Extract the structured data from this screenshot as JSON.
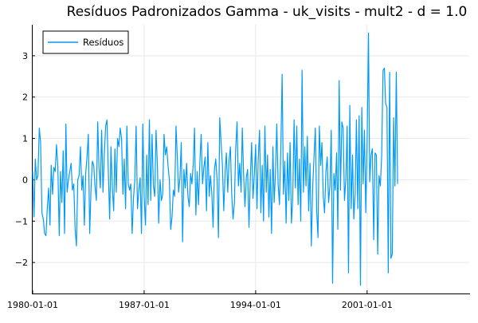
{
  "chart_data": {
    "type": "line",
    "title": "Resíduos Padronizados Gamma - uk_visits - mult2 - d = 1.0",
    "xlabel": "",
    "ylabel": "",
    "x_start": "1980-01",
    "x_frequency": "monthly",
    "xlim": [
      "1980-01-01",
      "2007-06-01"
    ],
    "ylim": [
      -2.75,
      3.75
    ],
    "x_ticks": [
      "1980-01-01",
      "1987-01-01",
      "1994-01-01",
      "2001-01-01"
    ],
    "y_ticks": [
      -2,
      -1,
      0,
      1,
      2,
      3
    ],
    "grid": true,
    "legend_position": "top-left",
    "series": [
      {
        "name": "Resíduos",
        "color": "#009AFA",
        "values": [
          0.2,
          -0.9,
          0.5,
          0.0,
          0.1,
          1.25,
          0.9,
          -0.8,
          -0.95,
          -1.3,
          -1.35,
          -0.7,
          -0.2,
          -1.1,
          0.35,
          -0.35,
          0.3,
          0.2,
          0.85,
          0.3,
          -1.35,
          0.2,
          -0.55,
          0.7,
          -1.3,
          1.35,
          -0.3,
          0.0,
          0.2,
          0.4,
          -0.25,
          -0.1,
          -1.2,
          -1.6,
          0.0,
          0.1,
          0.8,
          -0.25,
          0.1,
          -1.1,
          0.15,
          0.55,
          1.1,
          -1.3,
          -0.2,
          0.45,
          0.35,
          -0.15,
          -0.5,
          1.4,
          0.3,
          -0.2,
          1.2,
          -0.3,
          0.6,
          1.3,
          1.45,
          0.2,
          -0.95,
          0.8,
          -0.2,
          -0.75,
          0.75,
          -0.3,
          1.0,
          0.8,
          1.25,
          1.0,
          -0.35,
          0.5,
          -0.7,
          1.3,
          -0.1,
          -0.25,
          -0.1,
          -1.3,
          -0.45,
          0.0,
          1.3,
          -0.7,
          -0.25,
          0.05,
          -1.3,
          1.35,
          -0.4,
          -1.1,
          0.6,
          -0.6,
          1.45,
          -0.5,
          1.1,
          -0.15,
          -0.4,
          1.2,
          0.35,
          -1.05,
          0.0,
          -0.5,
          -0.35,
          1.1,
          0.6,
          0.8,
          0.35,
          0.0,
          -1.2,
          -0.9,
          -0.25,
          -0.4,
          1.3,
          0.5,
          -0.3,
          0.05,
          0.9,
          -1.5,
          0.25,
          -0.2,
          0.4,
          -0.4,
          -0.65,
          0.15,
          -0.1,
          0.4,
          1.25,
          -0.85,
          0.2,
          -0.6,
          0.4,
          1.1,
          -0.1,
          0.3,
          0.55,
          -0.75,
          0.9,
          -0.4,
          0.1,
          -0.3,
          -1.15,
          0.25,
          0.5,
          0.0,
          -1.4,
          1.5,
          0.9,
          0.35,
          -0.75,
          0.2,
          0.65,
          -0.3,
          0.45,
          0.8,
          -0.35,
          -0.95,
          -0.55,
          0.75,
          1.4,
          -0.15,
          0.4,
          -0.3,
          1.25,
          0.1,
          -0.65,
          0.05,
          0.25,
          -1.15,
          0.05,
          0.9,
          -0.45,
          0.1,
          0.85,
          -0.7,
          0.5,
          1.2,
          -0.8,
          0.35,
          -1.0,
          1.3,
          -0.3,
          0.6,
          -0.9,
          0.25,
          -1.3,
          0.8,
          -0.55,
          0.15,
          1.35,
          -0.1,
          -0.6,
          0.7,
          2.55,
          -0.35,
          0.45,
          -1.05,
          0.65,
          -0.5,
          0.9,
          -1.05,
          -0.45,
          1.45,
          -0.2,
          1.3,
          -0.6,
          0.5,
          -1.0,
          2.65,
          -0.3,
          0.8,
          -0.15,
          1.05,
          -0.75,
          0.4,
          -1.6,
          -0.2,
          0.55,
          1.25,
          -0.75,
          -1.4,
          1.3,
          0.35,
          0.9,
          -0.4,
          -0.8,
          0.2,
          0.55,
          -0.55,
          -0.15,
          1.2,
          -2.5,
          0.15,
          -0.25,
          0.65,
          -1.2,
          2.4,
          -0.25,
          1.4,
          1.25,
          -0.5,
          0.0,
          1.3,
          -2.25,
          1.8,
          -0.7,
          0.6,
          -0.95,
          -0.35,
          1.45,
          -0.7,
          1.55,
          -2.55,
          1.75,
          -0.1,
          1.2,
          -0.8,
          0.9,
          3.55,
          -0.05,
          0.6,
          0.75,
          -1.45,
          0.65,
          0.6,
          -1.8,
          0.1,
          -0.15,
          0.6,
          2.65,
          2.7,
          1.85,
          1.75,
          -2.25,
          2.6,
          -1.9,
          -1.8,
          1.5,
          -0.15,
          2.6,
          -0.1
        ]
      }
    ]
  }
}
